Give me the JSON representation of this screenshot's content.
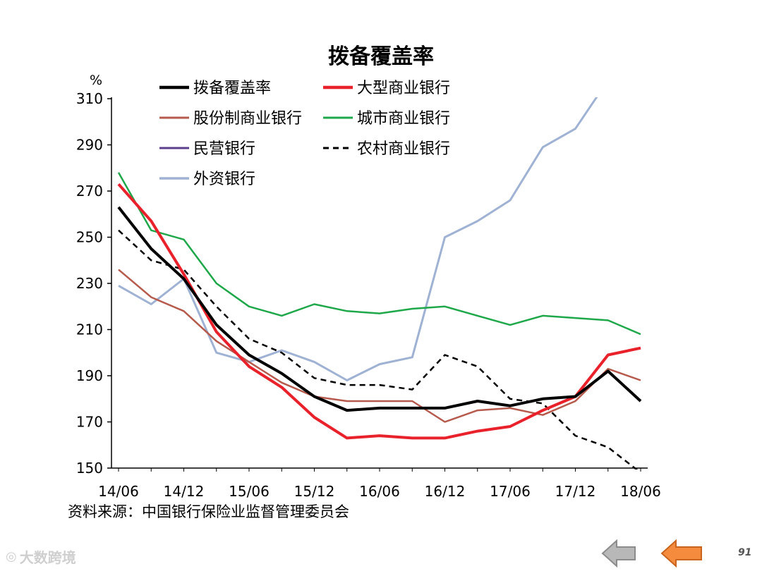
{
  "chart_data": {
    "type": "line",
    "title": "拨备覆盖率",
    "ylabel": "%",
    "xlabel": "",
    "ylim": [
      150,
      310
    ],
    "yticks": [
      150,
      170,
      190,
      210,
      230,
      250,
      270,
      290,
      310
    ],
    "x_tick_labels": [
      "14/06",
      "14/12",
      "15/06",
      "15/12",
      "16/06",
      "16/12",
      "17/06",
      "17/12",
      "18/06"
    ],
    "periods": [
      "14/06",
      "14/09",
      "14/12",
      "15/03",
      "15/06",
      "15/09",
      "15/12",
      "16/03",
      "16/06",
      "16/09",
      "16/12",
      "17/03",
      "17/06",
      "17/09",
      "17/12",
      "18/03",
      "18/06"
    ],
    "legend_position": "top",
    "series": [
      {
        "name": "拨备覆盖率",
        "color": "#000000",
        "width": 4,
        "dash": "",
        "values": [
          263,
          245,
          232,
          212,
          199,
          191,
          181,
          175,
          176,
          176,
          176,
          179,
          177,
          180,
          181,
          192,
          179
        ]
      },
      {
        "name": "大型商业银行",
        "color": "#e8212b",
        "width": 4,
        "dash": "",
        "values": [
          273,
          257,
          234,
          209,
          194,
          185,
          172,
          163,
          164,
          163,
          163,
          166,
          168,
          175,
          181,
          199,
          202
        ]
      },
      {
        "name": "股份制商业银行",
        "color": "#b55a4c",
        "width": 2.5,
        "dash": "",
        "values": [
          236,
          224,
          218,
          205,
          196,
          187,
          181,
          179,
          179,
          179,
          170,
          175,
          176,
          173,
          179,
          193,
          188
        ]
      },
      {
        "name": "城市商业银行",
        "color": "#1fa84a",
        "width": 2.5,
        "dash": "",
        "values": [
          278,
          253,
          249,
          230,
          220,
          216,
          221,
          218,
          217,
          219,
          220,
          216,
          212,
          216,
          215,
          214,
          208
        ]
      },
      {
        "name": "民营银行",
        "color": "#5b3f8c",
        "width": 2.5,
        "dash": "",
        "values": []
      },
      {
        "name": "农村商业银行",
        "color": "#000000",
        "width": 2.5,
        "dash": "8,6",
        "values": [
          253,
          240,
          236,
          220,
          206,
          200,
          189,
          186,
          186,
          184,
          199,
          194,
          180,
          178,
          164,
          159,
          148
        ]
      },
      {
        "name": "外资银行",
        "color": "#9fb2d3",
        "width": 3,
        "dash": "",
        "values": [
          229,
          221,
          232,
          200,
          196,
          201,
          196,
          188,
          195,
          198,
          250,
          257,
          266,
          289,
          297,
          318,
          null
        ]
      }
    ]
  },
  "source": "资料来源：中国银行保险业监督管理委员会",
  "watermark": "大数跨境",
  "page_number": "91"
}
